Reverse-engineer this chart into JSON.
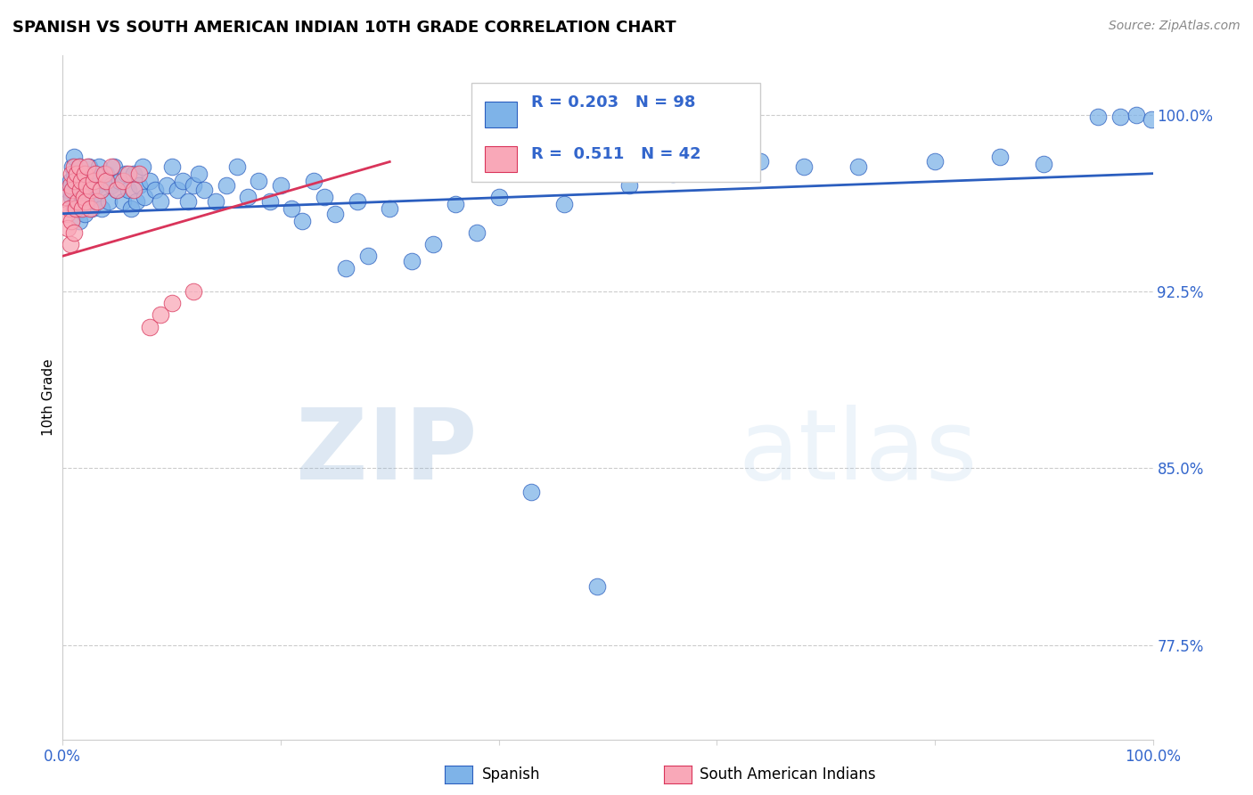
{
  "title": "SPANISH VS SOUTH AMERICAN INDIAN 10TH GRADE CORRELATION CHART",
  "source": "Source: ZipAtlas.com",
  "ylabel": "10th Grade",
  "ytick_labels": [
    "77.5%",
    "85.0%",
    "92.5%",
    "100.0%"
  ],
  "ytick_values": [
    0.775,
    0.85,
    0.925,
    1.0
  ],
  "xlim": [
    0.0,
    1.0
  ],
  "ylim": [
    0.735,
    1.025
  ],
  "legend_label1": "Spanish",
  "legend_label2": "South American Indians",
  "R1": "0.203",
  "N1": "98",
  "R2": "0.511",
  "N2": "42",
  "blue_color": "#7EB3E8",
  "pink_color": "#F9A8B8",
  "trend_blue": "#2B5EBF",
  "trend_pink": "#D9345A",
  "label_blue": "#3366CC",
  "spanish_x": [
    0.005,
    0.007,
    0.008,
    0.009,
    0.01,
    0.01,
    0.01,
    0.011,
    0.012,
    0.013,
    0.014,
    0.015,
    0.015,
    0.016,
    0.017,
    0.018,
    0.018,
    0.019,
    0.02,
    0.02,
    0.021,
    0.022,
    0.023,
    0.024,
    0.025,
    0.026,
    0.027,
    0.028,
    0.03,
    0.031,
    0.032,
    0.033,
    0.035,
    0.036,
    0.038,
    0.04,
    0.042,
    0.045,
    0.047,
    0.05,
    0.052,
    0.055,
    0.058,
    0.06,
    0.063,
    0.065,
    0.068,
    0.07,
    0.073,
    0.075,
    0.08,
    0.085,
    0.09,
    0.095,
    0.1,
    0.105,
    0.11,
    0.115,
    0.12,
    0.125,
    0.13,
    0.14,
    0.15,
    0.16,
    0.17,
    0.18,
    0.19,
    0.2,
    0.21,
    0.22,
    0.23,
    0.24,
    0.25,
    0.26,
    0.27,
    0.28,
    0.3,
    0.32,
    0.34,
    0.36,
    0.38,
    0.4,
    0.43,
    0.46,
    0.49,
    0.52,
    0.56,
    0.6,
    0.64,
    0.68,
    0.73,
    0.8,
    0.86,
    0.9,
    0.95,
    0.97,
    0.985,
    0.999
  ],
  "spanish_y": [
    0.968,
    0.972,
    0.965,
    0.978,
    0.96,
    0.975,
    0.982,
    0.97,
    0.963,
    0.975,
    0.968,
    0.978,
    0.955,
    0.97,
    0.96,
    0.975,
    0.965,
    0.968,
    0.972,
    0.958,
    0.975,
    0.963,
    0.97,
    0.978,
    0.965,
    0.972,
    0.96,
    0.968,
    0.975,
    0.963,
    0.97,
    0.978,
    0.968,
    0.96,
    0.972,
    0.975,
    0.963,
    0.97,
    0.978,
    0.968,
    0.972,
    0.963,
    0.975,
    0.968,
    0.96,
    0.975,
    0.963,
    0.97,
    0.978,
    0.965,
    0.972,
    0.968,
    0.963,
    0.97,
    0.978,
    0.968,
    0.972,
    0.963,
    0.97,
    0.975,
    0.968,
    0.963,
    0.97,
    0.978,
    0.965,
    0.972,
    0.963,
    0.97,
    0.96,
    0.955,
    0.972,
    0.965,
    0.958,
    0.935,
    0.963,
    0.94,
    0.96,
    0.938,
    0.945,
    0.962,
    0.95,
    0.965,
    0.84,
    0.962,
    0.8,
    0.97,
    0.975,
    0.978,
    0.98,
    0.978,
    0.978,
    0.98,
    0.982,
    0.979,
    0.999,
    0.999,
    1.0,
    0.998
  ],
  "sai_x": [
    0.003,
    0.004,
    0.005,
    0.006,
    0.007,
    0.007,
    0.008,
    0.008,
    0.009,
    0.01,
    0.01,
    0.011,
    0.012,
    0.013,
    0.014,
    0.015,
    0.016,
    0.017,
    0.018,
    0.019,
    0.02,
    0.021,
    0.022,
    0.023,
    0.025,
    0.026,
    0.028,
    0.03,
    0.032,
    0.035,
    0.038,
    0.04,
    0.045,
    0.05,
    0.055,
    0.06,
    0.065,
    0.07,
    0.08,
    0.09,
    0.1,
    0.12
  ],
  "sai_y": [
    0.965,
    0.958,
    0.952,
    0.96,
    0.97,
    0.945,
    0.975,
    0.955,
    0.968,
    0.978,
    0.95,
    0.972,
    0.96,
    0.975,
    0.963,
    0.978,
    0.968,
    0.972,
    0.96,
    0.965,
    0.975,
    0.963,
    0.97,
    0.978,
    0.96,
    0.968,
    0.972,
    0.975,
    0.963,
    0.968,
    0.975,
    0.972,
    0.978,
    0.968,
    0.972,
    0.975,
    0.968,
    0.975,
    0.91,
    0.915,
    0.92,
    0.925
  ],
  "blue_trend_x": [
    0.0,
    1.0
  ],
  "blue_trend_y": [
    0.958,
    0.975
  ],
  "pink_trend_x": [
    0.0,
    0.3
  ],
  "pink_trend_y": [
    0.94,
    0.98
  ]
}
